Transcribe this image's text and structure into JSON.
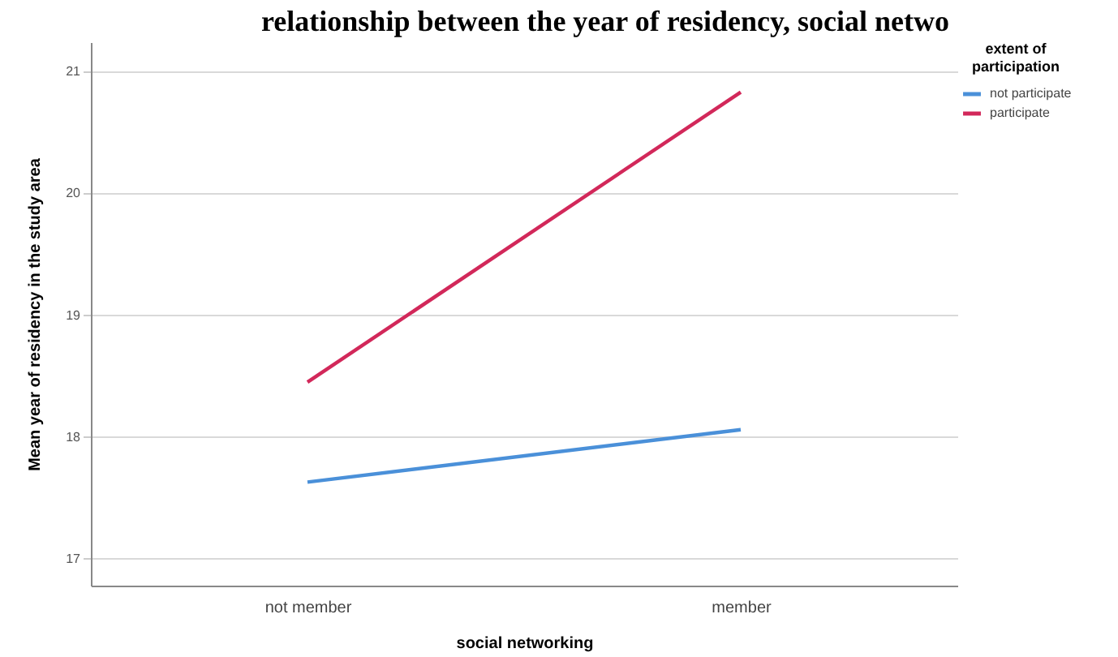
{
  "chart_data": {
    "type": "line",
    "title": "relationship between the year  of residency, social netwo",
    "xlabel": "social networking",
    "ylabel": "Mean year of residency in the study area",
    "legend_title": "extent of participation",
    "categories": [
      "not member",
      "member"
    ],
    "series": [
      {
        "name": "not participate",
        "color": "#4a90d9",
        "values": [
          17.63,
          18.06
        ]
      },
      {
        "name": "participate",
        "color": "#d2285a",
        "values": [
          18.45,
          20.83
        ]
      }
    ],
    "ylim": [
      16.78,
      21.24
    ],
    "yticks": [
      17,
      18,
      19,
      20,
      21
    ],
    "grid": "y",
    "legend": "top right",
    "marker": "none",
    "line_style": "solid"
  }
}
